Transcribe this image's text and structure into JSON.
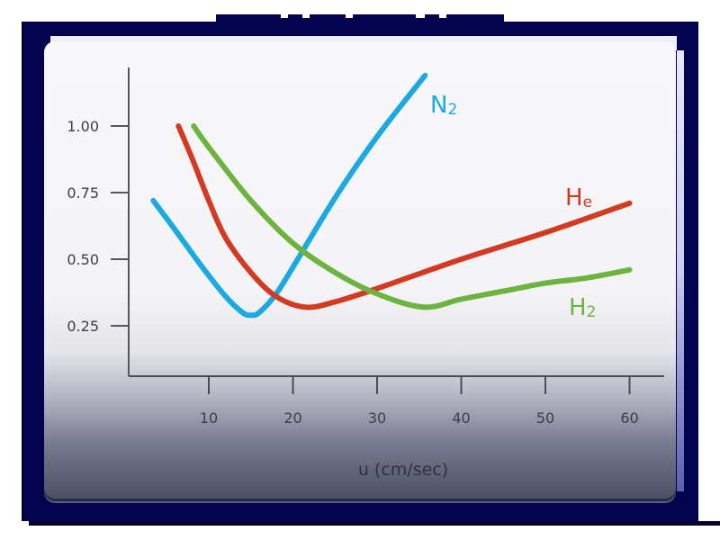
{
  "chart_data": {
    "type": "line",
    "title": "",
    "xlabel": "u (cm/sec)",
    "ylabel": "",
    "xlim": [
      0,
      64
    ],
    "ylim": [
      0.1,
      1.25
    ],
    "x_ticks": [
      10,
      20,
      30,
      40,
      50,
      60
    ],
    "y_ticks": [
      0.25,
      0.5,
      0.75,
      1.0
    ],
    "x_tick_labels": [
      "10",
      "20",
      "30",
      "40",
      "50",
      "60"
    ],
    "y_tick_labels": [
      "0.25",
      "0.50",
      "0.75",
      "1.00"
    ],
    "grid": false,
    "legend": "inline labels at curve ends",
    "series": [
      {
        "name": "N2",
        "label_main": "N",
        "label_sub": "2",
        "color": "#1aa9e0",
        "x": [
          3.4,
          6,
          9,
          12,
          14,
          15,
          16,
          18,
          20,
          25,
          30,
          35.7
        ],
        "y": [
          0.72,
          0.61,
          0.48,
          0.36,
          0.3,
          0.29,
          0.3,
          0.37,
          0.47,
          0.73,
          0.96,
          1.19
        ]
      },
      {
        "name": "He",
        "label_main": "H",
        "label_sub": "e",
        "color": "#d43a22",
        "x": [
          6.4,
          8,
          10,
          12,
          15,
          18,
          21.5,
          25,
          30,
          40,
          50,
          60
        ],
        "y": [
          1.0,
          0.88,
          0.72,
          0.58,
          0.45,
          0.36,
          0.32,
          0.34,
          0.39,
          0.5,
          0.6,
          0.71
        ]
      },
      {
        "name": "H2",
        "label_main": "H",
        "label_sub": "2",
        "color": "#6db33f",
        "x": [
          8.2,
          10,
          15,
          20,
          25,
          30,
          35.5,
          40,
          45,
          50,
          55,
          60
        ],
        "y": [
          1.0,
          0.92,
          0.72,
          0.56,
          0.45,
          0.37,
          0.32,
          0.35,
          0.38,
          0.41,
          0.43,
          0.46
        ]
      }
    ]
  },
  "frame": {
    "frame_color": "#03024f",
    "top_strip_segments": [
      [
        240,
        72
      ],
      [
        320,
        16
      ],
      [
        344,
        40
      ],
      [
        392,
        70
      ],
      [
        472,
        16
      ],
      [
        496,
        64
      ]
    ]
  }
}
